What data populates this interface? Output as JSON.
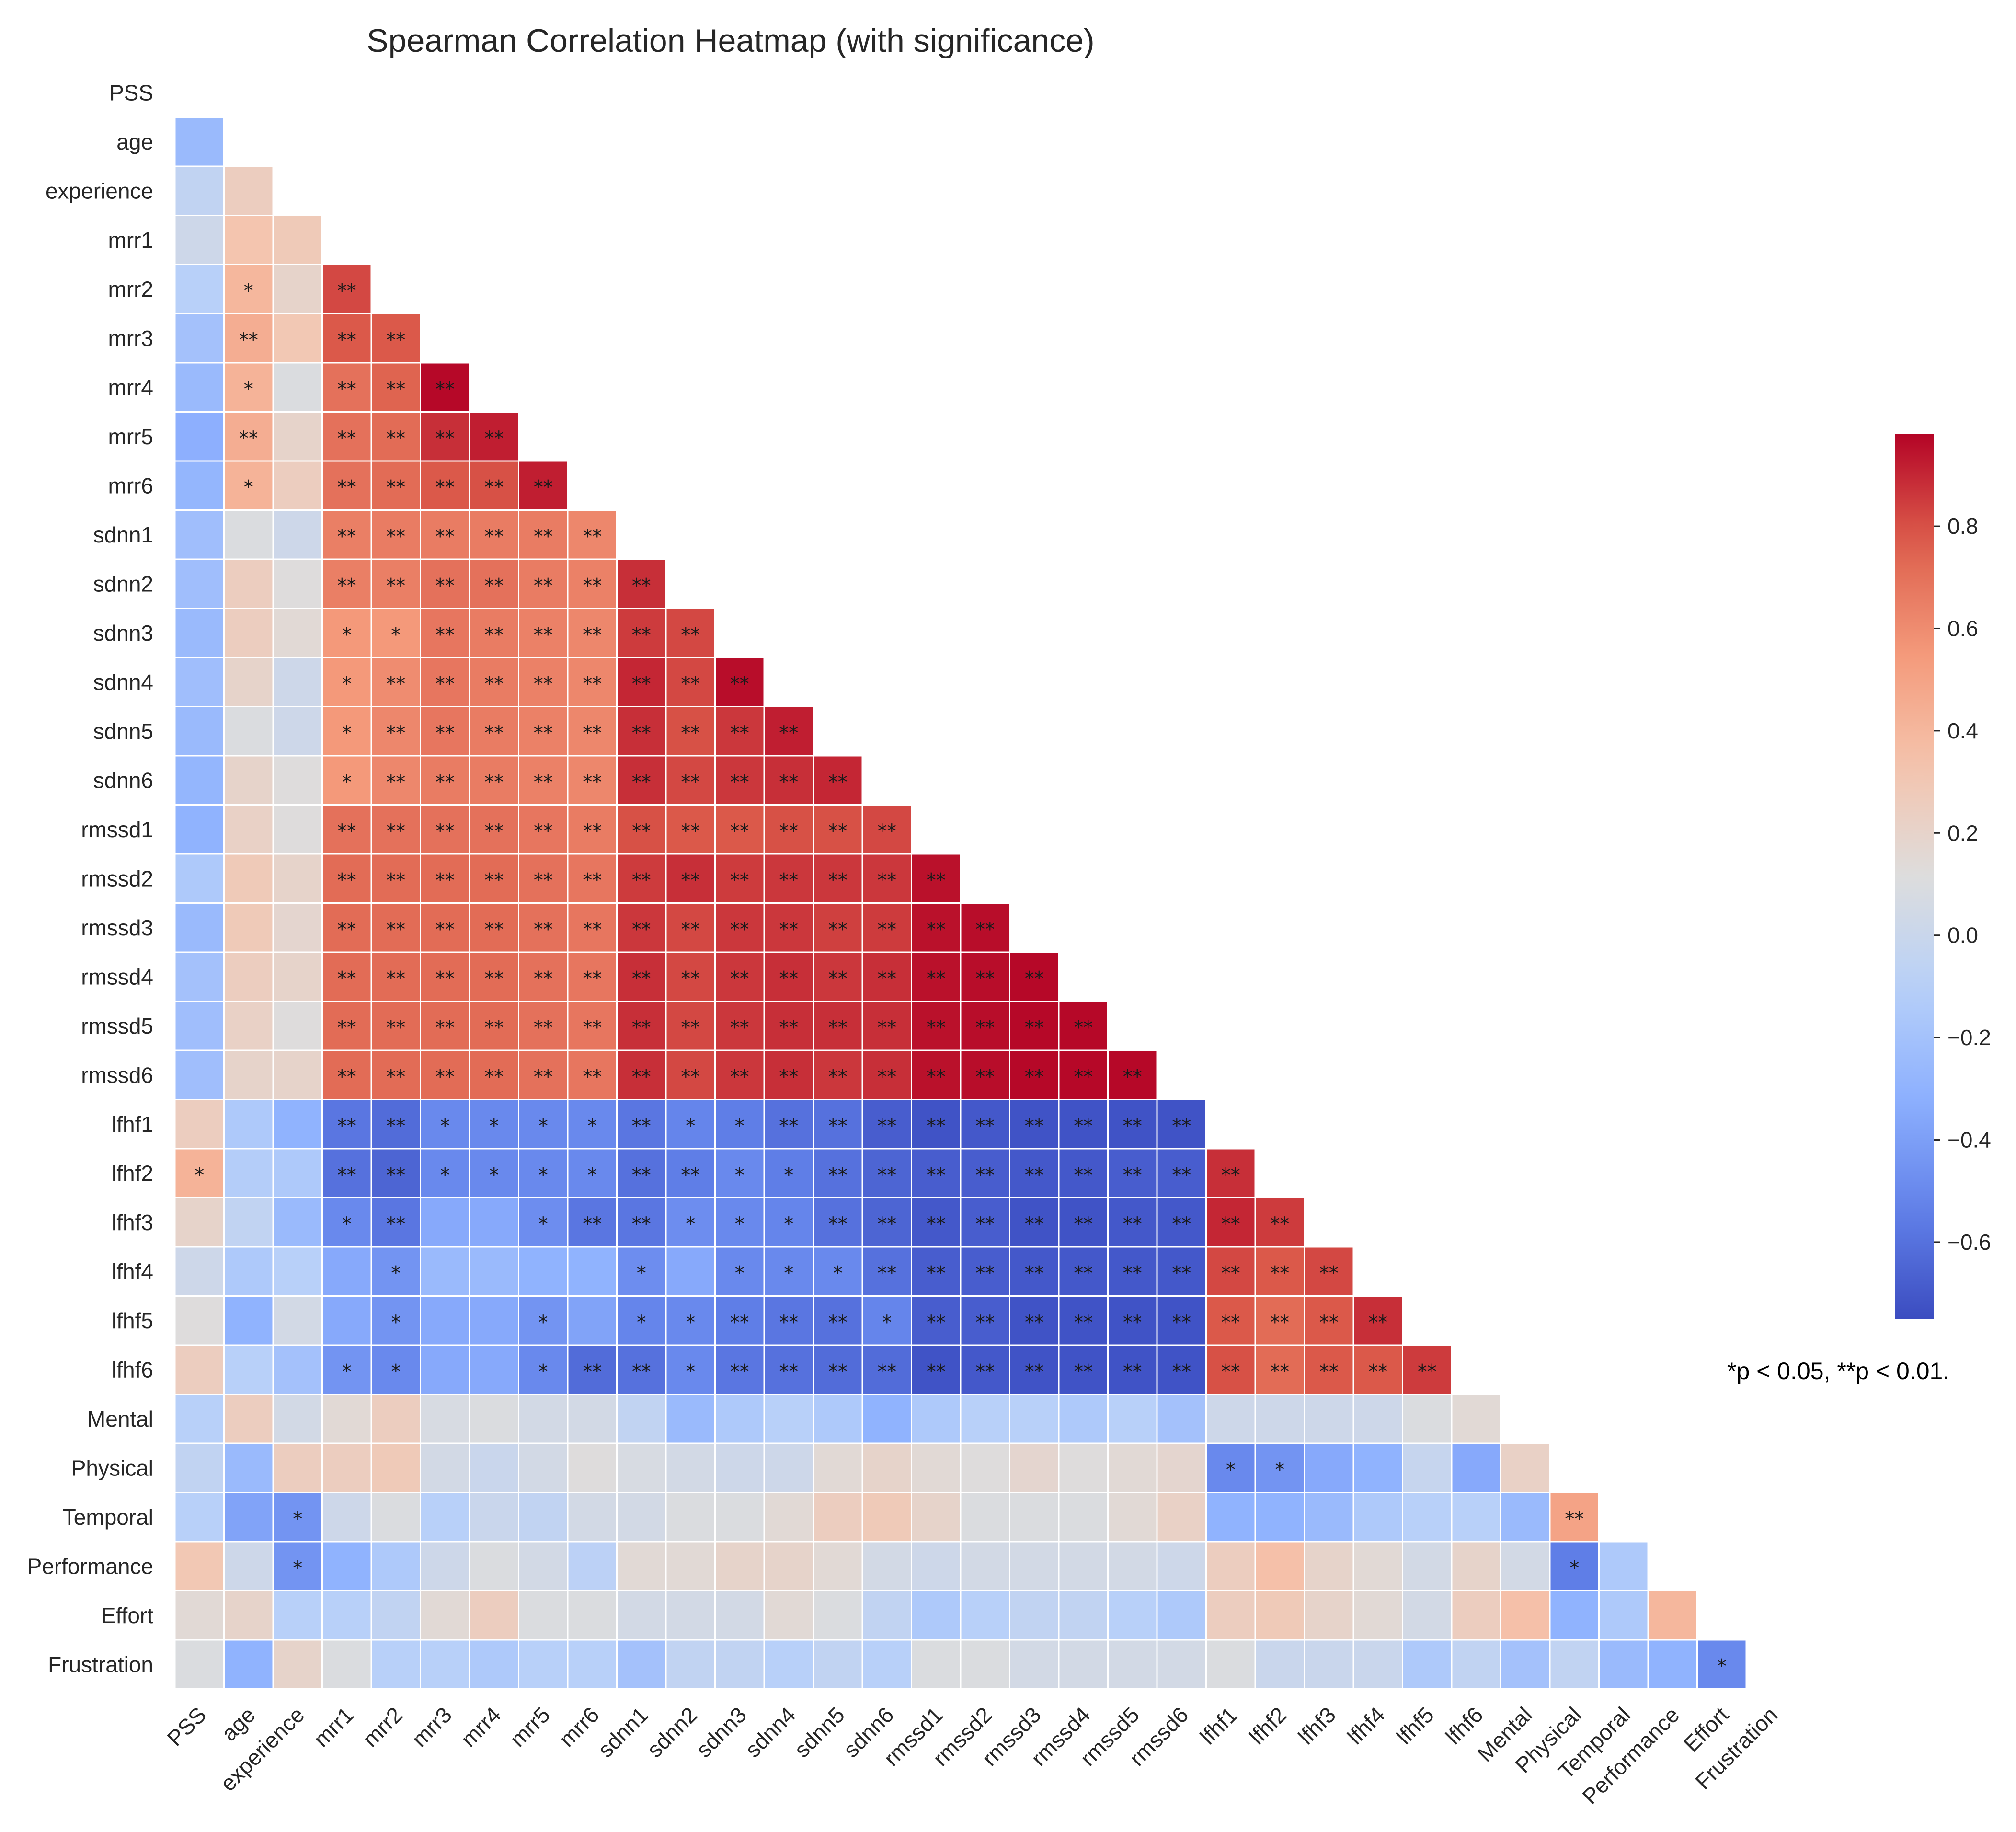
{
  "chart_data": {
    "type": "heatmap",
    "title": "Spearman Correlation Heatmap (with significance)",
    "variables": [
      "PSS",
      "age",
      "experience",
      "mrr1",
      "mrr2",
      "mrr3",
      "mrr4",
      "mrr5",
      "mrr6",
      "sdnn1",
      "sdnn2",
      "sdnn3",
      "sdnn4",
      "sdnn5",
      "sdnn6",
      "rmssd1",
      "rmssd2",
      "rmssd3",
      "rmssd4",
      "rmssd5",
      "rmssd6",
      "lfhf1",
      "lfhf2",
      "lfhf3",
      "lfhf4",
      "lfhf5",
      "lfhf6",
      "Mental",
      "Physical",
      "Temporal",
      "Performance",
      "Effort",
      "Frustration"
    ],
    "mask": "upper triangle and diagonal hidden",
    "rows": [
      {
        "values": [],
        "sig": []
      },
      {
        "values": [
          -0.25
        ],
        "sig": [
          ""
        ]
      },
      {
        "values": [
          -0.05,
          0.25
        ],
        "sig": [
          "",
          ""
        ]
      },
      {
        "values": [
          0.02,
          0.32,
          0.28
        ],
        "sig": [
          "",
          "",
          ""
        ]
      },
      {
        "values": [
          -0.1,
          0.4,
          0.2,
          0.82
        ],
        "sig": [
          "",
          "*",
          "",
          "**"
        ]
      },
      {
        "values": [
          -0.2,
          0.45,
          0.3,
          0.78,
          0.78
        ],
        "sig": [
          "",
          "**",
          "",
          "**",
          "**"
        ]
      },
      {
        "values": [
          -0.25,
          0.42,
          0.1,
          0.7,
          0.75,
          0.97
        ],
        "sig": [
          "",
          "*",
          "",
          "**",
          "**",
          "**"
        ]
      },
      {
        "values": [
          -0.32,
          0.45,
          0.2,
          0.7,
          0.72,
          0.88,
          0.92
        ],
        "sig": [
          "",
          "**",
          "",
          "**",
          "**",
          "**",
          "**"
        ]
      },
      {
        "values": [
          -0.28,
          0.42,
          0.25,
          0.7,
          0.72,
          0.78,
          0.8,
          0.92
        ],
        "sig": [
          "",
          "*",
          "",
          "**",
          "**",
          "**",
          "**",
          "**"
        ]
      },
      {
        "values": [
          -0.22,
          0.1,
          0.02,
          0.65,
          0.66,
          0.66,
          0.66,
          0.66,
          0.62
        ],
        "sig": [
          "",
          "",
          "",
          "**",
          "**",
          "**",
          "**",
          "**",
          "**"
        ]
      },
      {
        "values": [
          -0.22,
          0.25,
          0.12,
          0.65,
          0.65,
          0.7,
          0.7,
          0.66,
          0.64,
          0.88
        ],
        "sig": [
          "",
          "",
          "",
          "**",
          "**",
          "**",
          "**",
          "**",
          "**",
          "**"
        ]
      },
      {
        "values": [
          -0.25,
          0.25,
          0.15,
          0.55,
          0.55,
          0.68,
          0.66,
          0.64,
          0.62,
          0.85,
          0.82
        ],
        "sig": [
          "",
          "",
          "",
          "*",
          "*",
          "**",
          "**",
          "**",
          "**",
          "**",
          "**"
        ]
      },
      {
        "values": [
          -0.22,
          0.2,
          0.02,
          0.55,
          0.6,
          0.68,
          0.66,
          0.64,
          0.62,
          0.9,
          0.82,
          0.96
        ],
        "sig": [
          "",
          "",
          "",
          "*",
          "**",
          "**",
          "**",
          "**",
          "**",
          "**",
          "**",
          "**"
        ]
      },
      {
        "values": [
          -0.25,
          0.1,
          0.02,
          0.55,
          0.62,
          0.68,
          0.66,
          0.64,
          0.62,
          0.88,
          0.8,
          0.86,
          0.92
        ],
        "sig": [
          "",
          "",
          "",
          "*",
          "**",
          "**",
          "**",
          "**",
          "**",
          "**",
          "**",
          "**",
          "**"
        ]
      },
      {
        "values": [
          -0.28,
          0.2,
          0.12,
          0.55,
          0.62,
          0.66,
          0.66,
          0.64,
          0.62,
          0.88,
          0.82,
          0.86,
          0.88,
          0.9
        ],
        "sig": [
          "",
          "",
          "",
          "*",
          "**",
          "**",
          "**",
          "**",
          "**",
          "**",
          "**",
          "**",
          "**",
          "**"
        ]
      },
      {
        "values": [
          -0.3,
          0.22,
          0.12,
          0.7,
          0.7,
          0.7,
          0.7,
          0.68,
          0.66,
          0.8,
          0.78,
          0.78,
          0.8,
          0.8,
          0.82
        ],
        "sig": [
          "",
          "",
          "",
          "**",
          "**",
          "**",
          "**",
          "**",
          "**",
          "**",
          "**",
          "**",
          "**",
          "**",
          "**"
        ]
      },
      {
        "values": [
          -0.15,
          0.28,
          0.2,
          0.72,
          0.72,
          0.72,
          0.72,
          0.7,
          0.68,
          0.85,
          0.88,
          0.85,
          0.86,
          0.86,
          0.86,
          0.95
        ],
        "sig": [
          "",
          "",
          "",
          "**",
          "**",
          "**",
          "**",
          "**",
          "**",
          "**",
          "**",
          "**",
          "**",
          "**",
          "**",
          "**"
        ]
      },
      {
        "values": [
          -0.25,
          0.28,
          0.18,
          0.72,
          0.72,
          0.72,
          0.72,
          0.7,
          0.68,
          0.86,
          0.82,
          0.86,
          0.86,
          0.84,
          0.85,
          0.95,
          0.96
        ],
        "sig": [
          "",
          "",
          "",
          "**",
          "**",
          "**",
          "**",
          "**",
          "**",
          "**",
          "**",
          "**",
          "**",
          "**",
          "**",
          "**",
          "**"
        ]
      },
      {
        "values": [
          -0.2,
          0.25,
          0.2,
          0.72,
          0.72,
          0.72,
          0.72,
          0.7,
          0.68,
          0.88,
          0.82,
          0.86,
          0.88,
          0.86,
          0.88,
          0.95,
          0.96,
          0.97
        ],
        "sig": [
          "",
          "",
          "",
          "**",
          "**",
          "**",
          "**",
          "**",
          "**",
          "**",
          "**",
          "**",
          "**",
          "**",
          "**",
          "**",
          "**",
          "**"
        ]
      },
      {
        "values": [
          -0.22,
          0.22,
          0.12,
          0.72,
          0.72,
          0.72,
          0.72,
          0.7,
          0.68,
          0.88,
          0.82,
          0.86,
          0.88,
          0.88,
          0.88,
          0.95,
          0.96,
          0.97,
          0.97
        ],
        "sig": [
          "",
          "",
          "",
          "**",
          "**",
          "**",
          "**",
          "**",
          "**",
          "**",
          "**",
          "**",
          "**",
          "**",
          "**",
          "**",
          "**",
          "**",
          "**"
        ]
      },
      {
        "values": [
          -0.22,
          0.2,
          0.2,
          0.72,
          0.72,
          0.72,
          0.72,
          0.7,
          0.68,
          0.88,
          0.82,
          0.86,
          0.88,
          0.86,
          0.88,
          0.95,
          0.96,
          0.97,
          0.97,
          0.97
        ],
        "sig": [
          "",
          "",
          "",
          "**",
          "**",
          "**",
          "**",
          "**",
          "**",
          "**",
          "**",
          "**",
          "**",
          "**",
          "**",
          "**",
          "**",
          "**",
          "**",
          "**"
        ]
      },
      {
        "values": [
          0.25,
          -0.15,
          -0.3,
          -0.58,
          -0.62,
          -0.5,
          -0.5,
          -0.5,
          -0.5,
          -0.58,
          -0.52,
          -0.55,
          -0.6,
          -0.6,
          -0.68,
          -0.72,
          -0.7,
          -0.72,
          -0.72,
          -0.72,
          -0.72
        ],
        "sig": [
          "",
          "",
          "",
          "**",
          "**",
          "*",
          "*",
          "*",
          "*",
          "**",
          "*",
          "*",
          "**",
          "**",
          "**",
          "**",
          "**",
          "**",
          "**",
          "**",
          "**"
        ]
      },
      {
        "values": [
          0.42,
          -0.12,
          -0.15,
          -0.6,
          -0.65,
          -0.5,
          -0.5,
          -0.5,
          -0.5,
          -0.6,
          -0.55,
          -0.5,
          -0.55,
          -0.6,
          -0.65,
          -0.68,
          -0.68,
          -0.7,
          -0.7,
          -0.68,
          -0.68,
          0.88
        ],
        "sig": [
          "*",
          "",
          "",
          "**",
          "**",
          "*",
          "*",
          "*",
          "*",
          "**",
          "**",
          "*",
          "*",
          "**",
          "**",
          "**",
          "**",
          "**",
          "**",
          "**",
          "**",
          "**"
        ]
      },
      {
        "values": [
          0.2,
          -0.05,
          -0.25,
          -0.5,
          -0.58,
          -0.35,
          -0.35,
          -0.48,
          -0.58,
          -0.58,
          -0.48,
          -0.5,
          -0.52,
          -0.6,
          -0.65,
          -0.7,
          -0.68,
          -0.72,
          -0.72,
          -0.7,
          -0.7,
          0.9,
          0.85
        ],
        "sig": [
          "",
          "",
          "",
          "*",
          "**",
          "",
          "",
          "*",
          "**",
          "**",
          "*",
          "*",
          "*",
          "**",
          "**",
          "**",
          "**",
          "**",
          "**",
          "**",
          "**",
          "**",
          "**"
        ]
      },
      {
        "values": [
          0.02,
          -0.15,
          -0.1,
          -0.35,
          -0.45,
          -0.25,
          -0.25,
          -0.3,
          -0.3,
          -0.48,
          -0.35,
          -0.5,
          -0.5,
          -0.5,
          -0.6,
          -0.68,
          -0.68,
          -0.7,
          -0.7,
          -0.7,
          -0.7,
          0.82,
          0.78,
          0.82
        ],
        "sig": [
          "",
          "",
          "",
          "",
          "*",
          "",
          "",
          "",
          "",
          "*",
          "",
          "*",
          "*",
          "*",
          "**",
          "**",
          "**",
          "**",
          "**",
          "**",
          "**",
          "**",
          "**",
          "**"
        ]
      },
      {
        "values": [
          0.12,
          -0.3,
          0.05,
          -0.35,
          -0.45,
          -0.35,
          -0.35,
          -0.45,
          -0.38,
          -0.52,
          -0.5,
          -0.55,
          -0.58,
          -0.6,
          -0.52,
          -0.68,
          -0.68,
          -0.72,
          -0.72,
          -0.72,
          -0.72,
          0.78,
          0.72,
          0.78,
          0.88
        ],
        "sig": [
          "",
          "",
          "",
          "",
          "*",
          "",
          "",
          "*",
          "",
          "*",
          "*",
          "**",
          "**",
          "**",
          "*",
          "**",
          "**",
          "**",
          "**",
          "**",
          "**",
          "**",
          "**",
          "**",
          "**"
        ]
      },
      {
        "values": [
          0.25,
          -0.1,
          -0.2,
          -0.45,
          -0.5,
          -0.35,
          -0.35,
          -0.5,
          -0.62,
          -0.6,
          -0.5,
          -0.58,
          -0.6,
          -0.62,
          -0.62,
          -0.72,
          -0.7,
          -0.72,
          -0.72,
          -0.72,
          -0.72,
          0.8,
          0.72,
          0.78,
          0.78,
          0.85
        ],
        "sig": [
          "",
          "",
          "",
          "*",
          "*",
          "",
          "",
          "*",
          "**",
          "**",
          "*",
          "**",
          "**",
          "**",
          "**",
          "**",
          "**",
          "**",
          "**",
          "**",
          "**",
          "**",
          "**",
          "**",
          "**",
          "**"
        ]
      },
      {
        "values": [
          -0.1,
          0.25,
          0.05,
          0.15,
          0.25,
          0.08,
          0.1,
          0.05,
          0.05,
          -0.05,
          -0.25,
          -0.15,
          -0.1,
          -0.15,
          -0.3,
          -0.15,
          -0.1,
          -0.1,
          -0.15,
          -0.1,
          -0.2,
          0.02,
          0.02,
          0.02,
          0.02,
          0.1,
          0.15
        ],
        "sig": [
          "",
          "",
          "",
          "",
          "",
          "",
          "",
          "",
          "",
          "",
          "",
          "",
          "",
          "",
          "",
          "",
          "",
          "",
          "",
          "",
          "",
          "",
          "",
          "",
          "",
          "",
          ""
        ]
      },
      {
        "values": [
          -0.05,
          -0.25,
          0.25,
          0.25,
          0.28,
          0.05,
          0.0,
          0.05,
          0.12,
          0.08,
          0.05,
          0.02,
          0.02,
          0.15,
          0.2,
          0.15,
          0.12,
          0.18,
          0.12,
          0.15,
          0.18,
          -0.5,
          -0.45,
          -0.35,
          -0.3,
          -0.02,
          -0.35,
          0.22
        ],
        "sig": [
          "",
          "",
          "",
          "",
          "",
          "",
          "",
          "",
          "",
          "",
          "",
          "",
          "",
          "",
          "",
          "",
          "",
          "",
          "",
          "",
          "",
          "*",
          "*",
          "",
          "",
          "",
          "",
          ""
        ]
      },
      {
        "values": [
          -0.1,
          -0.38,
          -0.45,
          0.02,
          0.1,
          -0.1,
          0.0,
          -0.05,
          0.05,
          0.05,
          0.1,
          0.1,
          0.15,
          0.25,
          0.28,
          0.2,
          0.1,
          0.1,
          0.1,
          0.15,
          0.22,
          -0.3,
          -0.3,
          -0.25,
          -0.15,
          -0.1,
          -0.1,
          -0.25,
          0.5
        ],
        "sig": [
          "",
          "",
          "*",
          "",
          "",
          "",
          "",
          "",
          "",
          "",
          "",
          "",
          "",
          "",
          "",
          "",
          "",
          "",
          "",
          "",
          "",
          "",
          "",
          "",
          "",
          "",
          "",
          "",
          "**"
        ]
      },
      {
        "values": [
          0.3,
          0.02,
          -0.45,
          -0.3,
          -0.15,
          0.02,
          0.1,
          0.05,
          -0.08,
          0.15,
          0.15,
          0.2,
          0.2,
          0.15,
          0.05,
          0.02,
          0.05,
          0.05,
          0.05,
          0.05,
          0.02,
          0.25,
          0.35,
          0.2,
          0.15,
          0.05,
          0.2,
          0.05,
          -0.55,
          -0.15
        ],
        "sig": [
          "",
          "",
          "*",
          "",
          "",
          "",
          "",
          "",
          "",
          "",
          "",
          "",
          "",
          "",
          "",
          "",
          "",
          "",
          "",
          "",
          "",
          "",
          "",
          "",
          "",
          "",
          "",
          "",
          "*",
          ""
        ]
      },
      {
        "values": [
          0.15,
          0.2,
          -0.1,
          -0.1,
          -0.05,
          0.15,
          0.25,
          0.1,
          0.1,
          0.05,
          0.05,
          0.05,
          0.15,
          0.1,
          -0.05,
          -0.15,
          -0.1,
          -0.05,
          -0.05,
          -0.1,
          -0.15,
          0.25,
          0.28,
          0.2,
          0.15,
          0.05,
          0.25,
          0.35,
          -0.3,
          -0.15,
          0.4
        ],
        "sig": [
          "",
          "",
          "",
          "",
          "",
          "",
          "",
          "",
          "",
          "",
          "",
          "",
          "",
          "",
          "",
          "",
          "",
          "",
          "",
          "",
          "",
          "",
          "",
          "",
          "",
          "",
          "",
          "",
          "",
          "",
          ""
        ]
      },
      {
        "values": [
          0.1,
          -0.3,
          0.2,
          0.1,
          -0.1,
          -0.1,
          -0.15,
          -0.1,
          -0.1,
          -0.2,
          -0.05,
          -0.05,
          -0.1,
          -0.05,
          -0.1,
          0.1,
          0.1,
          0.05,
          0.05,
          0.05,
          0.05,
          0.1,
          0.0,
          0.0,
          0.0,
          -0.15,
          -0.05,
          -0.2,
          -0.05,
          -0.25,
          -0.3,
          -0.5
        ],
        "sig": [
          "",
          "",
          "",
          "",
          "",
          "",
          "",
          "",
          "",
          "",
          "",
          "",
          "",
          "",
          "",
          "",
          "",
          "",
          "",
          "",
          "",
          "",
          "",
          "",
          "",
          "",
          "",
          "",
          "",
          "",
          "",
          "*"
        ]
      }
    ],
    "colorbar": {
      "colormap": "coolwarm",
      "vmin": -0.75,
      "vmax": 0.98,
      "ticks": [
        -0.6,
        -0.4,
        -0.2,
        0.0,
        0.2,
        0.4,
        0.6,
        0.8
      ],
      "tick_labels": [
        "−0.6",
        "−0.4",
        "−0.2",
        "0.0",
        "0.2",
        "0.4",
        "0.6",
        "0.8"
      ]
    },
    "annotation": "*p < 0.05, **p < 0.01."
  }
}
